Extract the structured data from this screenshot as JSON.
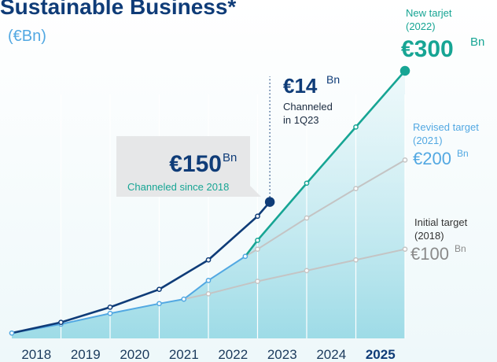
{
  "chart_data": {
    "type": "line",
    "title": "Sustainable Business*",
    "subtitle": "(€Bn)",
    "categories": [
      "2018",
      "2019",
      "2020",
      "2021",
      "2022",
      "2023",
      "2024",
      "2025"
    ],
    "xlim": [
      2018,
      2026
    ],
    "xticks": [
      2019,
      2020,
      2021,
      2022,
      2023,
      2024,
      2025,
      2026
    ],
    "ylim": [
      0,
      300
    ],
    "grid": true,
    "series": [
      {
        "color": "#52a8e2",
        "x": [
          2018,
          2019,
          2020,
          2021,
          2021.5,
          2022,
          2022.75
        ],
        "values": [
          6,
          16,
          28,
          39,
          44,
          65,
          92
        ]
      },
      {
        "name": "Initial target",
        "color": "#c4c4c4",
        "x": [
          2021.5,
          2022,
          2023,
          2024,
          2025,
          2026
        ],
        "values": [
          44,
          50,
          64,
          76,
          88,
          100
        ]
      },
      {
        "name": "Revised target",
        "color": "#c4c4c4",
        "x": [
          2022.75,
          2023,
          2024,
          2025,
          2026
        ],
        "values": [
          92,
          100,
          135,
          168,
          200
        ]
      },
      {
        "name": "New tarjet",
        "color": "#17a594",
        "x": [
          2022.75,
          2023,
          2024,
          2025,
          2026
        ],
        "values": [
          92,
          110,
          174,
          237,
          300
        ]
      },
      {
        "name": "Channeled since 2018",
        "color": "#0f3c78",
        "x": [
          2018,
          2019,
          2020,
          2021,
          2022,
          2023,
          2023.25
        ],
        "values": [
          6,
          18,
          35,
          55,
          88,
          137,
          153
        ]
      }
    ],
    "annotations": {
      "new": {
        "label": "New tarjet",
        "year": "(2022)",
        "amount": "€300",
        "unit": "Bn"
      },
      "revised": {
        "label": "Revised target",
        "year": "(2021)",
        "amount": "€200",
        "unit": "Bn"
      },
      "initial": {
        "label": "Initial target",
        "year": "(2018)",
        "amount": "€100",
        "unit": "Bn"
      },
      "channeled": {
        "amount": "€150",
        "unit": "Bn",
        "label": "Channeled since 2018"
      },
      "quarter": {
        "amount": "€14",
        "unit": "Bn",
        "line1": "Channeled",
        "line2": "in 1Q23"
      }
    }
  }
}
